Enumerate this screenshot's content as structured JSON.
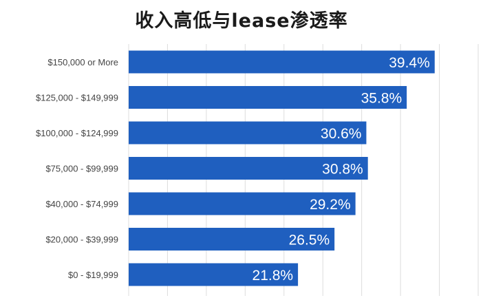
{
  "chart_data": {
    "type": "bar",
    "orientation": "horizontal",
    "title": "收入高低与lease渗透率",
    "categories": [
      "$150,000 or More",
      "$125,000 - $149,999",
      "$100,000 - $124,999",
      "$75,000 - $99,999",
      "$40,000 - $74,999",
      "$20,000 - $39,999",
      "$0 - $19,999"
    ],
    "values": [
      39.4,
      35.8,
      30.6,
      30.8,
      29.2,
      26.5,
      21.8
    ],
    "value_labels": [
      "39.4%",
      "35.8%",
      "30.6%",
      "30.8%",
      "29.2%",
      "26.5%",
      "21.8%"
    ],
    "xlim": [
      0,
      45
    ],
    "grid": true,
    "bar_color": "#1f5fbf"
  }
}
